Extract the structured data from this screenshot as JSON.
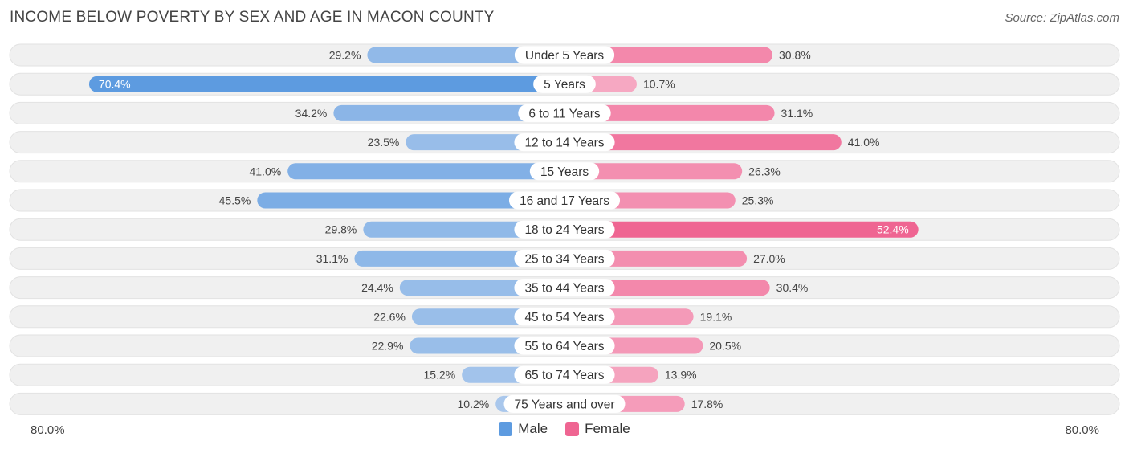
{
  "title": "INCOME BELOW POVERTY BY SEX AND AGE IN MACON COUNTY",
  "source": "Source: ZipAtlas.com",
  "colors": {
    "male_light": "#a9c7ec",
    "male_dark": "#5d9be0",
    "female_light": "#f6a9c3",
    "female_dark": "#ef6592",
    "row_bg": "#f0f0f0",
    "row_border": "#e2e2e2"
  },
  "legend": {
    "male": "Male",
    "female": "Female"
  },
  "axis": {
    "left_label": "80.0%",
    "right_label": "80.0%"
  },
  "chart_data": {
    "type": "bar",
    "orientation": "horizontal-diverging",
    "title": "INCOME BELOW POVERTY BY SEX AND AGE IN MACON COUNTY",
    "xlim": [
      -80,
      80
    ],
    "unit": "%",
    "categories": [
      "Under 5 Years",
      "5 Years",
      "6 to 11 Years",
      "12 to 14 Years",
      "15 Years",
      "16 and 17 Years",
      "18 to 24 Years",
      "25 to 34 Years",
      "35 to 44 Years",
      "45 to 54 Years",
      "55 to 64 Years",
      "65 to 74 Years",
      "75 Years and over"
    ],
    "series": [
      {
        "name": "Male",
        "values": [
          29.2,
          70.4,
          34.2,
          23.5,
          41.0,
          45.5,
          29.8,
          31.1,
          24.4,
          22.6,
          22.9,
          15.2,
          10.2
        ],
        "labels": [
          "29.2%",
          "70.4%",
          "34.2%",
          "23.5%",
          "41.0%",
          "45.5%",
          "29.8%",
          "31.1%",
          "24.4%",
          "22.6%",
          "22.9%",
          "15.2%",
          "10.2%"
        ]
      },
      {
        "name": "Female",
        "values": [
          30.8,
          10.7,
          31.1,
          41.0,
          26.3,
          25.3,
          52.4,
          27.0,
          30.4,
          19.1,
          20.5,
          13.9,
          17.8
        ],
        "labels": [
          "30.8%",
          "10.7%",
          "31.1%",
          "41.0%",
          "26.3%",
          "25.3%",
          "52.4%",
          "27.0%",
          "30.4%",
          "19.1%",
          "20.5%",
          "13.9%",
          "17.8%"
        ]
      }
    ],
    "legend_position": "bottom-center"
  }
}
